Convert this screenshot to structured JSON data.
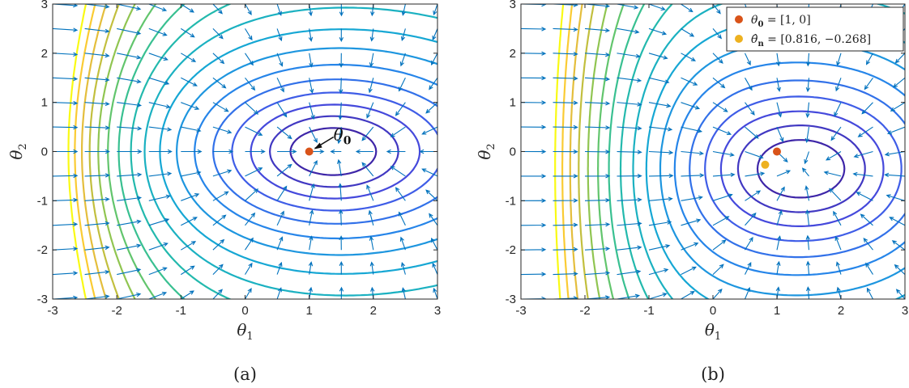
{
  "chart_data": [
    {
      "type": "contour",
      "panel_caption": "(a)",
      "xlabel": "θ",
      "xlabel_subscript": "1",
      "ylabel": "θ",
      "ylabel_subscript": "2",
      "xlim": [
        -3,
        3
      ],
      "ylim": [
        -3,
        3
      ],
      "xticks": [
        -3,
        -2,
        -1,
        0,
        1,
        2,
        3
      ],
      "yticks": [
        -3,
        -2,
        -1,
        0,
        1,
        2,
        3
      ],
      "xtick_labels": [
        "-3",
        "-2",
        "-1",
        "0",
        "1",
        "2",
        "3"
      ],
      "ytick_labels": [
        "-3",
        "-2",
        "-1",
        "0",
        "1",
        "2",
        "3"
      ],
      "grid": false,
      "colormap": "parula",
      "vector_field": "quiver",
      "points": [
        {
          "label": "θ",
          "label_subscript": "0",
          "x": 1,
          "y": 0,
          "color": "#d95319"
        }
      ],
      "annotation": {
        "text": "θ",
        "subscript": "0",
        "target_x": 1,
        "target_y": 0
      }
    },
    {
      "type": "contour",
      "panel_caption": "(b)",
      "xlabel": "θ",
      "xlabel_subscript": "1",
      "ylabel": "θ",
      "ylabel_subscript": "2",
      "xlim": [
        -3,
        3
      ],
      "ylim": [
        -3,
        3
      ],
      "xticks": [
        -3,
        -2,
        -1,
        0,
        1,
        2,
        3
      ],
      "yticks": [
        -3,
        -2,
        -1,
        0,
        1,
        2,
        3
      ],
      "xtick_labels": [
        "-3",
        "-2",
        "-1",
        "0",
        "1",
        "2",
        "3"
      ],
      "ytick_labels": [
        "-3",
        "-2",
        "-1",
        "0",
        "1",
        "2",
        "3"
      ],
      "grid": false,
      "colormap": "parula",
      "vector_field": "quiver",
      "legend_position": "top-right",
      "points": [
        {
          "label": "θ",
          "label_subscript": "0",
          "value_text": " = [1, 0]",
          "x": 1,
          "y": 0,
          "color": "#d95319"
        },
        {
          "label": "θ̂",
          "label_subscript": "n",
          "value_text": " = [0.816, −0.268]",
          "x": 0.816,
          "y": -0.268,
          "color": "#edb120"
        }
      ]
    }
  ]
}
